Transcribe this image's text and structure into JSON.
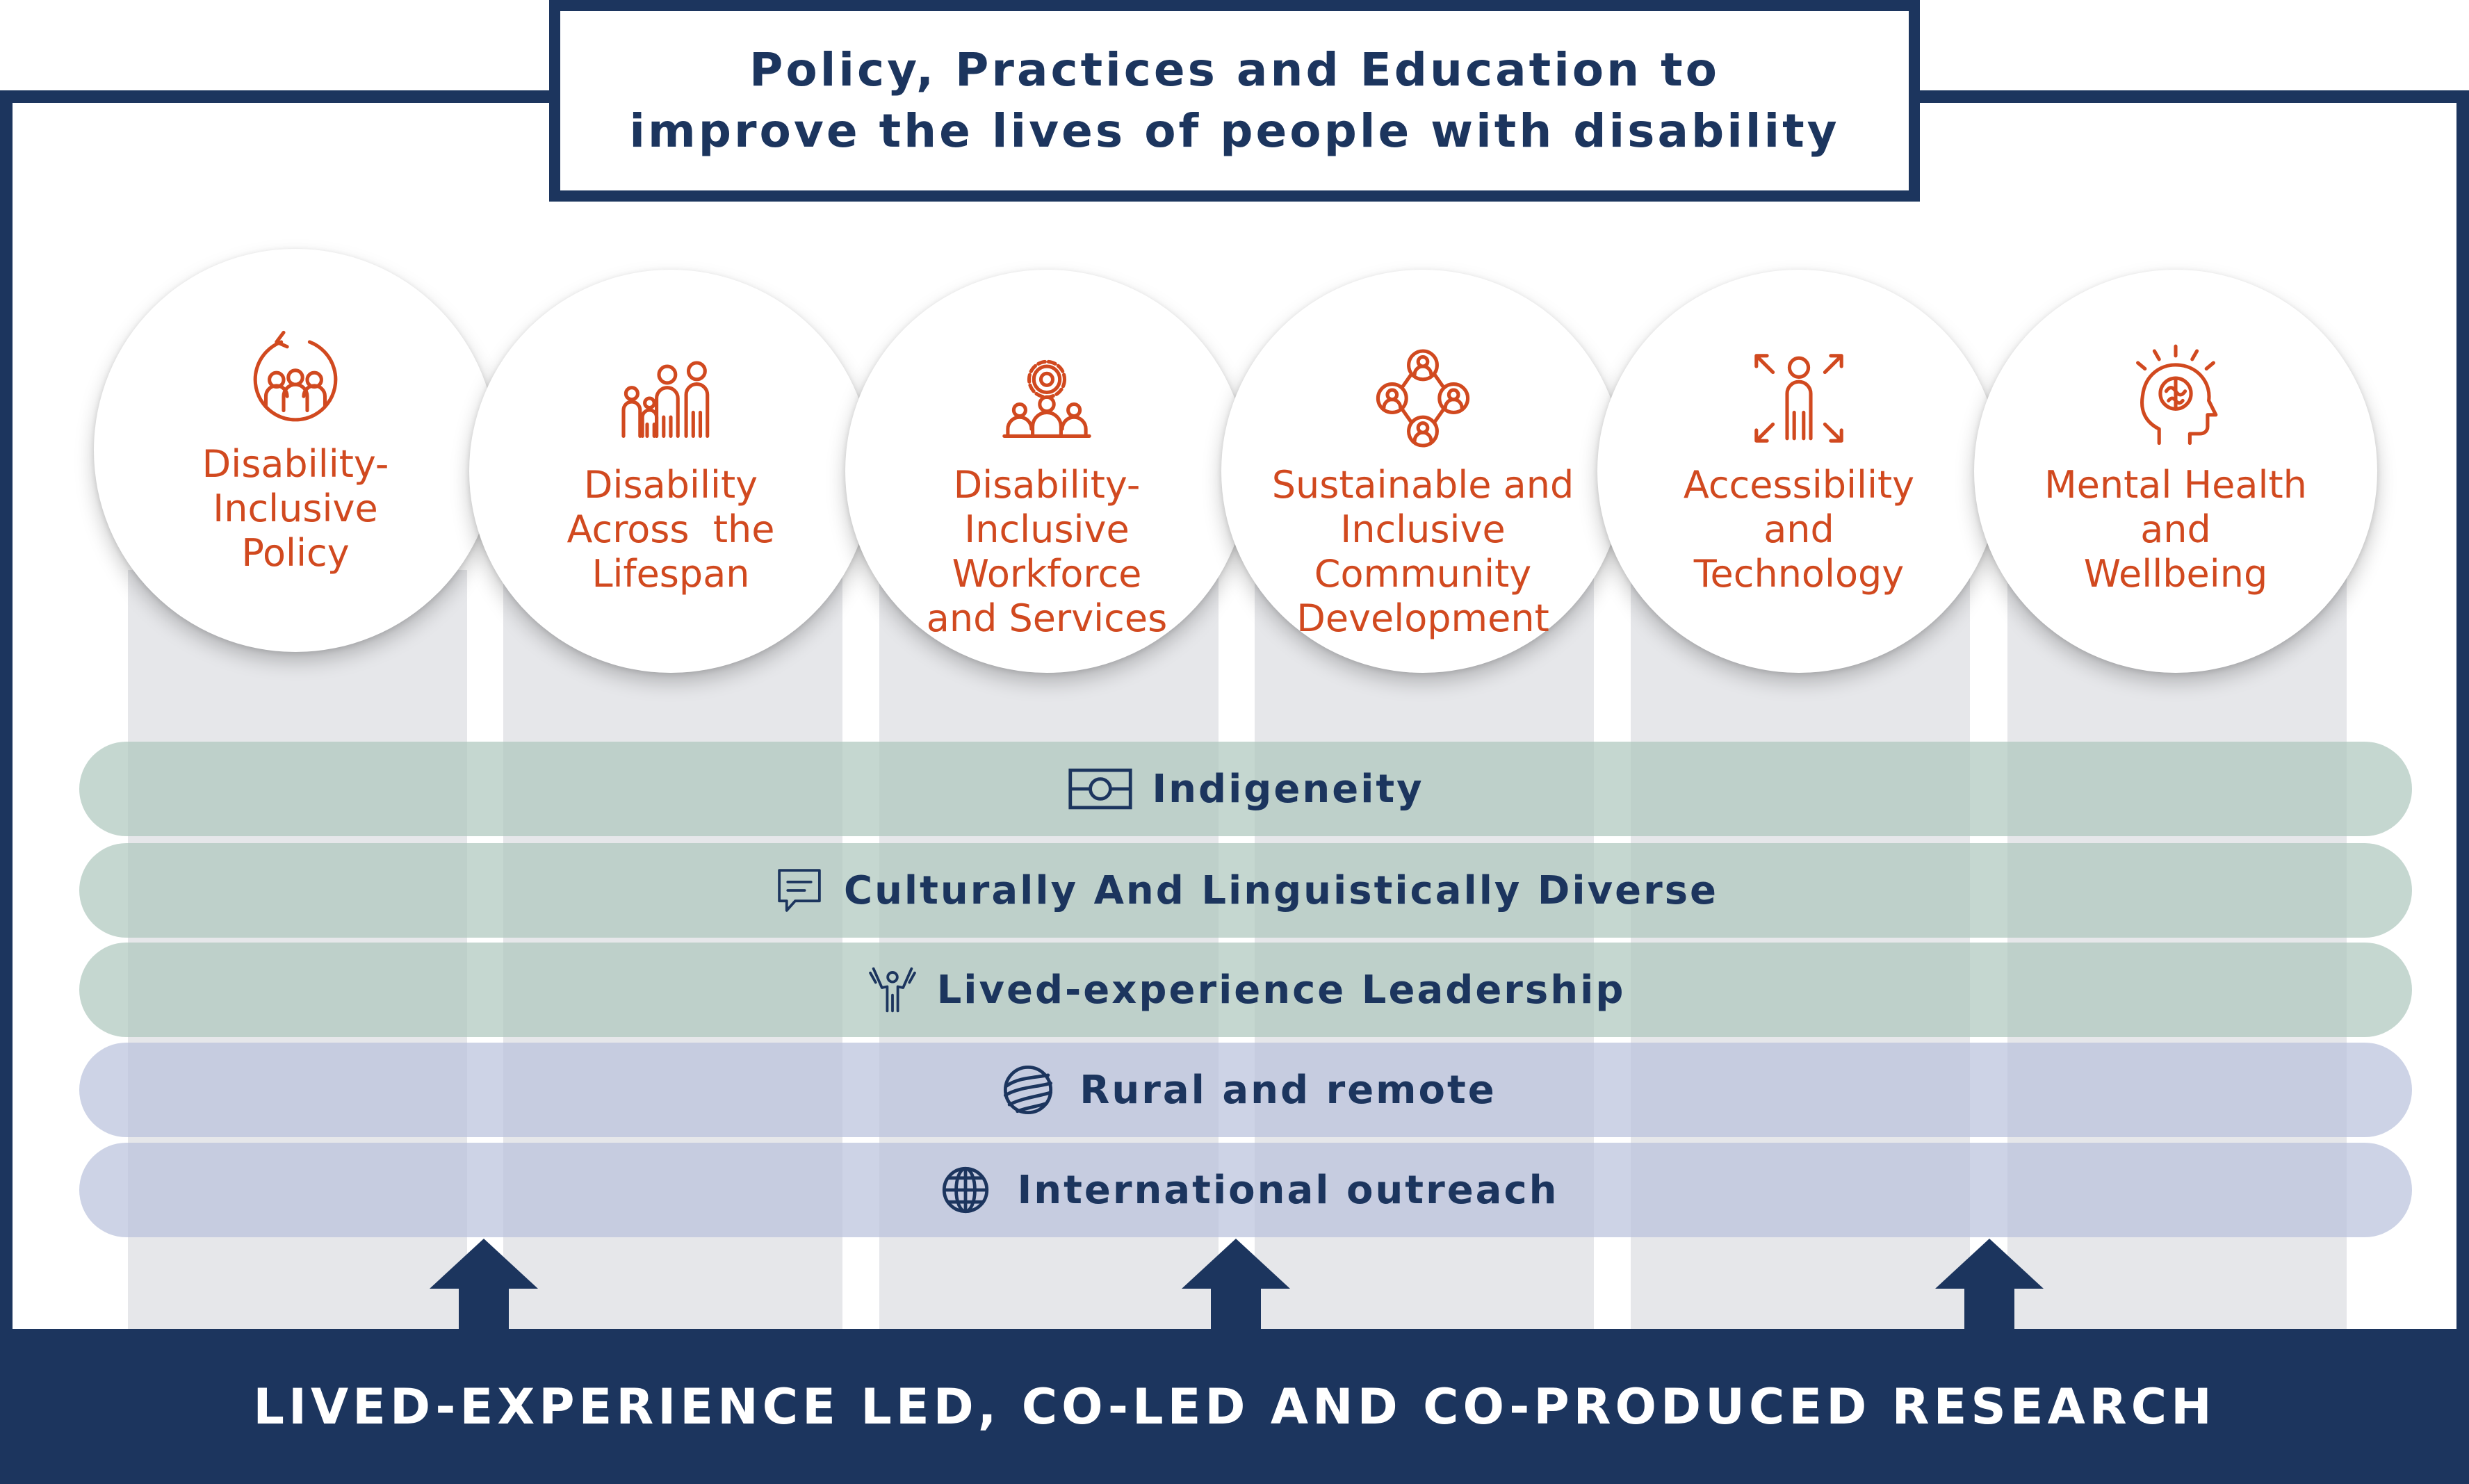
{
  "title": {
    "line1": "Policy, Practices and Education to",
    "line2": "improve the lives of people with disability"
  },
  "themes": [
    {
      "lines": [
        "Disability-Inclusive",
        "Policy"
      ],
      "icon": "people-cycle-icon"
    },
    {
      "lines": [
        "Disability",
        "Across  the",
        "Lifespan"
      ],
      "icon": "family-icon"
    },
    {
      "lines": [
        "Disability-Inclusive",
        "Workforce",
        "and Services"
      ],
      "icon": "team-gear-icon"
    },
    {
      "lines": [
        "Sustainable and",
        "Inclusive",
        "Community",
        "Development"
      ],
      "icon": "community-network-icon"
    },
    {
      "lines": [
        "Accessibility",
        "and",
        "Technology"
      ],
      "icon": "person-expand-icon"
    },
    {
      "lines": [
        "Mental Health",
        "and",
        "Wellbeing"
      ],
      "icon": "head-brain-icon"
    }
  ],
  "bands": [
    {
      "label": "Indigeneity",
      "icon": "flag-icon",
      "color": "green"
    },
    {
      "label": "Culturally And Linguistically Diverse",
      "icon": "speech-bubble-icon",
      "color": "green"
    },
    {
      "label": "Lived-experience Leadership",
      "icon": "raised-hands-person-icon",
      "color": "green"
    },
    {
      "label": "Rural and remote",
      "icon": "rural-hills-icon",
      "color": "blue"
    },
    {
      "label": "International outreach",
      "icon": "globe-icon",
      "color": "blue"
    }
  ],
  "footer": "LIVED-EXPERIENCE LED, CO-LED AND CO-PRODUCED RESEARCH",
  "colors": {
    "navy": "#1c355e",
    "orange": "#d1491f",
    "green_band": "#c3d5cc",
    "blue_band": "#cdd3e4",
    "column": "#e6e7ea"
  }
}
